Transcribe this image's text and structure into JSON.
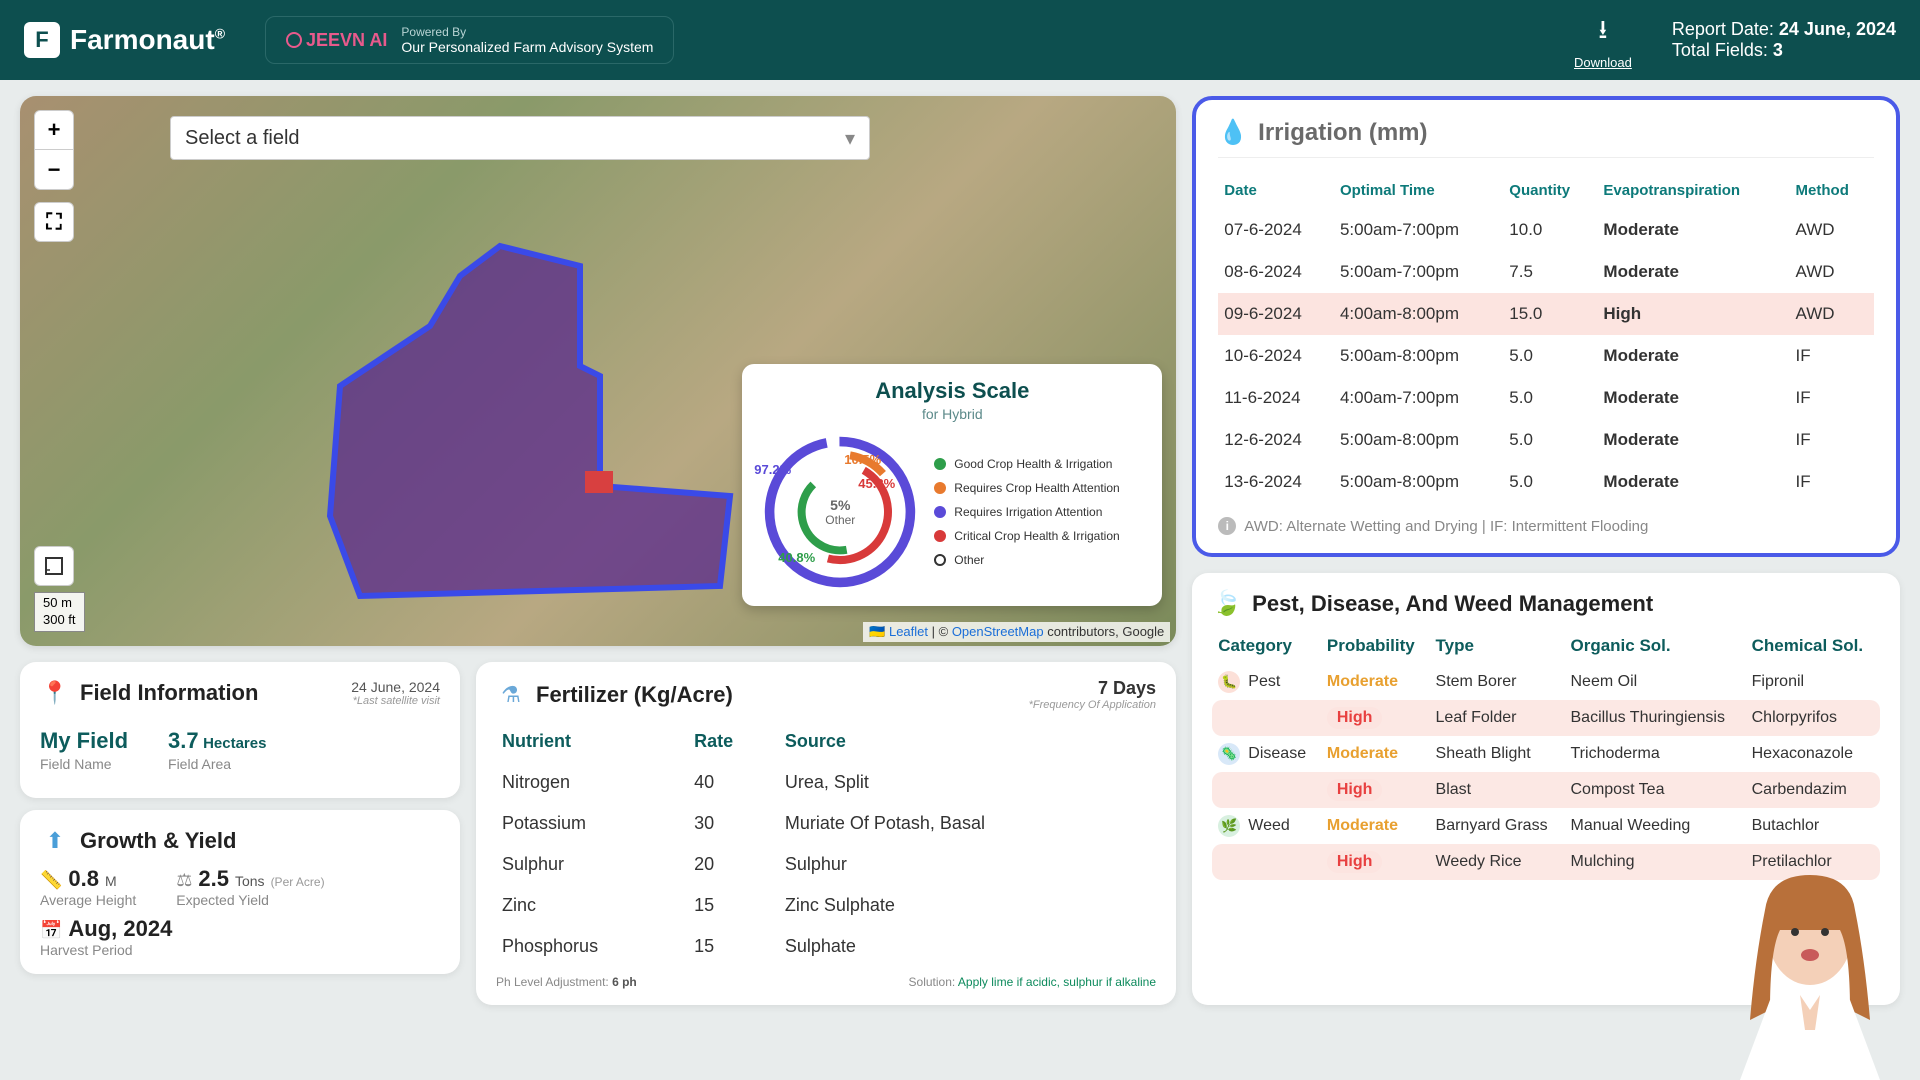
{
  "header": {
    "brand": "Farmonaut",
    "jeevn_brand": "JEEVN AI",
    "powered_by": "Powered By",
    "jeevn_tagline": "Our Personalized Farm Advisory System",
    "download": "Download",
    "report_date_label": "Report Date:",
    "report_date": "24 June, 2024",
    "total_fields_label": "Total Fields:",
    "total_fields": "3"
  },
  "map": {
    "select_placeholder": "Select a field",
    "scale_m": "50 m",
    "scale_ft": "300 ft",
    "attrib_leaflet": "Leaflet",
    "attrib_osm": "OpenStreetMap",
    "attrib_rest": " contributors, Google"
  },
  "analysis": {
    "title": "Analysis Scale",
    "subtitle": "for Hybrid",
    "center_pct": "5%",
    "center_label": "Other",
    "pcts": {
      "purple": "97.2%",
      "orange": "10.5%",
      "red": "45.8%",
      "green": "40.8%"
    },
    "legend": [
      {
        "color": "#2e9e4a",
        "label": "Good Crop Health & Irrigation"
      },
      {
        "color": "#e87a2e",
        "label": "Requires Crop Health Attention"
      },
      {
        "color": "#5a4ad8",
        "label": "Requires Irrigation Attention"
      },
      {
        "color": "#d83a3a",
        "label": "Critical Crop Health & Irrigation"
      },
      {
        "ring": true,
        "label": "Other"
      }
    ]
  },
  "field_info": {
    "title": "Field Information",
    "date": "24 June, 2024",
    "date_note": "*Last satellite visit",
    "name_val": "My Field",
    "name_label": "Field Name",
    "area_val": "3.7",
    "area_unit": "Hectares",
    "area_label": "Field Area"
  },
  "growth": {
    "title": "Growth & Yield",
    "height_val": "0.8",
    "height_unit": "M",
    "height_label": "Average Height",
    "yield_val": "2.5",
    "yield_unit": "Tons",
    "yield_pa": "(Per Acre)",
    "yield_label": "Expected Yield",
    "harvest_val": "Aug, 2024",
    "harvest_label": "Harvest Period"
  },
  "fertilizer": {
    "title": "Fertilizer (Kg/Acre)",
    "freq": "7 Days",
    "freq_note": "*Frequency Of Application",
    "cols": {
      "nutrient": "Nutrient",
      "rate": "Rate",
      "source": "Source"
    },
    "rows": [
      {
        "n": "Nitrogen",
        "r": "40",
        "s": "Urea, Split"
      },
      {
        "n": "Potassium",
        "r": "30",
        "s": "Muriate Of Potash, Basal"
      },
      {
        "n": "Sulphur",
        "r": "20",
        "s": "Sulphur"
      },
      {
        "n": "Zinc",
        "r": "15",
        "s": "Zinc Sulphate"
      },
      {
        "n": "Phosphorus",
        "r": "15",
        "s": "Sulphate"
      }
    ],
    "ph_label": "Ph Level Adjustment:",
    "ph_val": "6 ph",
    "sol_label": "Solution:",
    "sol_val": "Apply lime if acidic, sulphur if alkaline"
  },
  "irrigation": {
    "title": "Irrigation (mm)",
    "cols": {
      "date": "Date",
      "time": "Optimal Time",
      "qty": "Quantity",
      "evap": "Evapotranspiration",
      "method": "Method"
    },
    "rows": [
      {
        "d": "07-6-2024",
        "t": "5:00am-7:00pm",
        "q": "10.0",
        "e": "Moderate",
        "m": "AWD",
        "high": false
      },
      {
        "d": "08-6-2024",
        "t": "5:00am-7:00pm",
        "q": "7.5",
        "e": "Moderate",
        "m": "AWD",
        "high": false
      },
      {
        "d": "09-6-2024",
        "t": "4:00am-8:00pm",
        "q": "15.0",
        "e": "High",
        "m": "AWD",
        "high": true
      },
      {
        "d": "10-6-2024",
        "t": "5:00am-8:00pm",
        "q": "5.0",
        "e": "Moderate",
        "m": "IF",
        "high": false
      },
      {
        "d": "11-6-2024",
        "t": "4:00am-7:00pm",
        "q": "5.0",
        "e": "Moderate",
        "m": "IF",
        "high": false
      },
      {
        "d": "12-6-2024",
        "t": "5:00am-8:00pm",
        "q": "5.0",
        "e": "Moderate",
        "m": "IF",
        "high": false
      },
      {
        "d": "13-6-2024",
        "t": "5:00am-8:00pm",
        "q": "5.0",
        "e": "Moderate",
        "m": "IF",
        "high": false
      }
    ],
    "note": "AWD: Alternate Wetting and Drying | IF: Intermittent Flooding"
  },
  "pest": {
    "title": "Pest, Disease, And Weed Management",
    "cols": {
      "cat": "Category",
      "prob": "Probability",
      "type": "Type",
      "org": "Organic Sol.",
      "chem": "Chemical Sol."
    },
    "rows": [
      {
        "cat": "Pest",
        "catClass": "pest",
        "prob": "Moderate",
        "high": false,
        "type": "Stem Borer",
        "org": "Neem Oil",
        "chem": "Fipronil"
      },
      {
        "cat": "",
        "prob": "High",
        "high": true,
        "type": "Leaf Folder",
        "org": "Bacillus Thuringiensis",
        "chem": "Chlorpyrifos"
      },
      {
        "cat": "Disease",
        "catClass": "disease",
        "prob": "Moderate",
        "high": false,
        "type": "Sheath Blight",
        "org": "Trichoderma",
        "chem": "Hexaconazole"
      },
      {
        "cat": "",
        "prob": "High",
        "high": true,
        "type": "Blast",
        "org": "Compost Tea",
        "chem": "Carbendazim"
      },
      {
        "cat": "Weed",
        "catClass": "weed",
        "prob": "Moderate",
        "high": false,
        "type": "Barnyard Grass",
        "org": "Manual Weeding",
        "chem": "Butachlor"
      },
      {
        "cat": "",
        "prob": "High",
        "high": true,
        "type": "Weedy Rice",
        "org": "Mulching",
        "chem": "Pretilachlor"
      }
    ]
  },
  "colors": {
    "teal": "#0d4f4f",
    "accent_blue": "#4a5ae8",
    "mod": "#e8a030",
    "high": "#e84040"
  }
}
